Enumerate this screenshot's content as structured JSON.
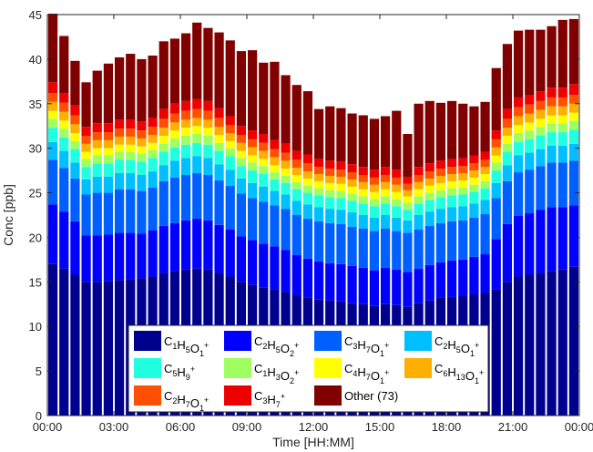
{
  "chart_data": {
    "type": "bar",
    "stacked": true,
    "xlabel": "Time [HH:MM]",
    "ylabel": "Conc  [ppb]",
    "ylim": [
      0,
      45
    ],
    "yticks": [
      0,
      5,
      10,
      15,
      20,
      25,
      30,
      35,
      40,
      45
    ],
    "xtick_labels": [
      "00:00",
      "03:00",
      "06:00",
      "09:00",
      "12:00",
      "15:00",
      "18:00",
      "21:00",
      "00:00"
    ],
    "x_range_hours": [
      0,
      24
    ],
    "grid": false,
    "legend_position": "bottom-center",
    "x_hours": [
      0.25,
      0.75,
      1.25,
      1.75,
      2.25,
      2.75,
      3.25,
      3.75,
      4.25,
      4.75,
      5.25,
      5.75,
      6.25,
      6.75,
      7.25,
      7.75,
      8.25,
      8.75,
      9.25,
      9.75,
      10.25,
      10.75,
      11.25,
      11.75,
      12.25,
      12.75,
      13.25,
      13.75,
      14.25,
      14.75,
      15.25,
      15.75,
      16.25,
      16.75,
      17.25,
      17.75,
      18.25,
      18.75,
      19.25,
      19.75,
      20.25,
      20.75,
      21.25,
      21.75,
      22.25,
      22.75,
      23.25,
      23.75
    ],
    "series": [
      {
        "label": {
          "parts": [
            [
              "C",
              ""
            ],
            [
              "1",
              "sub"
            ],
            [
              "H",
              ""
            ],
            [
              "5",
              "sub"
            ],
            [
              "O",
              ""
            ],
            [
              "1",
              "sub"
            ],
            [
              "+",
              "sup"
            ]
          ]
        },
        "color": "#00008F",
        "values": [
          17.0,
          16.5,
          15.8,
          15.0,
          15.0,
          15.1,
          15.2,
          15.3,
          15.4,
          15.6,
          16.0,
          16.2,
          16.4,
          16.5,
          16.4,
          16.0,
          15.6,
          15.0,
          14.7,
          14.4,
          14.2,
          13.9,
          13.5,
          13.2,
          13.0,
          12.9,
          12.8,
          12.6,
          12.5,
          12.3,
          12.5,
          12.4,
          12.2,
          12.6,
          12.9,
          13.2,
          13.3,
          13.4,
          13.6,
          13.8,
          14.2,
          15.0,
          15.6,
          15.8,
          16.0,
          16.2,
          16.4,
          16.7
        ]
      },
      {
        "label": {
          "parts": [
            [
              "C",
              ""
            ],
            [
              "2",
              "sub"
            ],
            [
              "H",
              ""
            ],
            [
              "5",
              "sub"
            ],
            [
              "O",
              ""
            ],
            [
              "2",
              "sub"
            ],
            [
              "+",
              "sup"
            ]
          ]
        },
        "color": "#0000FF",
        "values": [
          6.7,
          6.4,
          6.0,
          5.2,
          5.2,
          5.2,
          5.3,
          5.2,
          5.0,
          5.2,
          5.3,
          5.4,
          5.5,
          5.6,
          5.5,
          5.4,
          5.3,
          5.1,
          5.0,
          4.9,
          4.8,
          4.7,
          4.5,
          4.4,
          4.3,
          4.2,
          4.2,
          4.2,
          4.1,
          4.0,
          4.1,
          4.0,
          3.9,
          3.9,
          4.0,
          4.0,
          4.1,
          4.1,
          4.2,
          4.3,
          5.6,
          6.5,
          6.8,
          6.9,
          7.1,
          7.2,
          7.0,
          6.9
        ]
      },
      {
        "label": {
          "parts": [
            [
              "C",
              ""
            ],
            [
              "3",
              "sub"
            ],
            [
              "H",
              ""
            ],
            [
              "7",
              "sub"
            ],
            [
              "O",
              ""
            ],
            [
              "1",
              "sub"
            ],
            [
              "+",
              "sup"
            ]
          ]
        },
        "color": "#0060FF",
        "values": [
          5.0,
          4.9,
          4.8,
          4.6,
          4.8,
          4.7,
          4.9,
          4.9,
          4.8,
          4.8,
          5.0,
          5.1,
          5.1,
          5.1,
          5.1,
          5.0,
          4.9,
          4.8,
          4.7,
          4.7,
          4.6,
          4.6,
          4.5,
          4.5,
          4.5,
          4.5,
          4.5,
          4.4,
          4.4,
          4.4,
          4.4,
          4.3,
          4.4,
          4.4,
          4.4,
          4.4,
          4.4,
          4.4,
          4.4,
          4.5,
          4.6,
          4.8,
          4.9,
          4.9,
          4.9,
          5.0,
          5.0,
          5.0
        ]
      },
      {
        "label": {
          "parts": [
            [
              "C",
              ""
            ],
            [
              "2",
              "sub"
            ],
            [
              "H",
              ""
            ],
            [
              "5",
              "sub"
            ],
            [
              "O",
              ""
            ],
            [
              "1",
              "sub"
            ],
            [
              "+",
              "sup"
            ]
          ]
        },
        "color": "#00BFFF",
        "values": [
          2.0,
          1.9,
          1.8,
          1.7,
          1.8,
          1.8,
          1.8,
          1.8,
          1.8,
          1.8,
          1.8,
          1.9,
          1.9,
          1.9,
          1.9,
          1.8,
          1.8,
          1.7,
          1.7,
          1.7,
          1.6,
          1.6,
          1.6,
          1.6,
          1.6,
          1.6,
          1.6,
          1.6,
          1.5,
          1.5,
          1.5,
          1.5,
          1.4,
          1.6,
          1.6,
          1.6,
          1.6,
          1.6,
          1.6,
          1.6,
          1.7,
          1.8,
          1.9,
          1.9,
          1.9,
          1.9,
          1.9,
          1.9
        ]
      },
      {
        "label": {
          "parts": [
            [
              "C",
              ""
            ],
            [
              "5",
              "sub"
            ],
            [
              "H",
              ""
            ],
            [
              "9",
              "sub"
            ],
            [
              "+",
              "sup"
            ]
          ]
        },
        "color": "#20FFDF",
        "values": [
          1.6,
          1.5,
          1.5,
          1.4,
          1.5,
          1.5,
          1.5,
          1.5,
          1.5,
          1.5,
          1.5,
          1.5,
          1.5,
          1.5,
          1.5,
          1.5,
          1.5,
          1.4,
          1.4,
          1.4,
          1.3,
          1.3,
          1.3,
          1.3,
          1.3,
          1.3,
          1.3,
          1.3,
          1.3,
          1.3,
          1.3,
          1.3,
          1.2,
          1.3,
          1.3,
          1.3,
          1.3,
          1.3,
          1.3,
          1.3,
          1.4,
          1.5,
          1.5,
          1.5,
          1.5,
          1.5,
          1.5,
          1.6
        ]
      },
      {
        "label": {
          "parts": [
            [
              "C",
              ""
            ],
            [
              "1",
              "sub"
            ],
            [
              "H",
              ""
            ],
            [
              "3",
              "sub"
            ],
            [
              "O",
              ""
            ],
            [
              "2",
              "sub"
            ],
            [
              "+",
              "sup"
            ]
          ]
        },
        "color": "#9FFF60",
        "values": [
          1.0,
          1.0,
          0.9,
          0.9,
          0.9,
          0.9,
          0.9,
          0.9,
          0.9,
          0.9,
          0.9,
          1.0,
          1.0,
          1.0,
          1.0,
          0.9,
          0.9,
          0.9,
          0.9,
          0.9,
          0.8,
          0.8,
          0.8,
          0.8,
          0.8,
          0.8,
          0.8,
          0.8,
          0.8,
          0.8,
          0.8,
          0.8,
          0.8,
          0.8,
          0.8,
          0.8,
          0.8,
          0.8,
          0.8,
          0.8,
          0.9,
          0.9,
          1.0,
          1.0,
          1.0,
          1.0,
          1.0,
          1.0
        ]
      },
      {
        "label": {
          "parts": [
            [
              "C",
              ""
            ],
            [
              "4",
              "sub"
            ],
            [
              "H",
              ""
            ],
            [
              "7",
              "sub"
            ],
            [
              "O",
              ""
            ],
            [
              "1",
              "sub"
            ],
            [
              "+",
              "sup"
            ]
          ]
        },
        "color": "#FFFF00",
        "values": [
          0.9,
          0.9,
          0.9,
          0.8,
          0.8,
          0.8,
          0.8,
          0.8,
          0.8,
          0.8,
          0.9,
          0.9,
          0.9,
          0.9,
          0.9,
          0.9,
          0.8,
          0.8,
          0.8,
          0.8,
          0.8,
          0.8,
          0.8,
          0.8,
          0.8,
          0.8,
          0.8,
          0.8,
          0.8,
          0.8,
          0.8,
          0.8,
          0.7,
          0.8,
          0.8,
          0.8,
          0.8,
          0.8,
          0.8,
          0.8,
          0.8,
          0.9,
          0.9,
          0.9,
          0.9,
          0.9,
          0.9,
          0.9
        ]
      },
      {
        "label": {
          "parts": [
            [
              "C",
              ""
            ],
            [
              "6",
              "sub"
            ],
            [
              "H",
              ""
            ],
            [
              "13",
              "sub"
            ],
            [
              "O",
              ""
            ],
            [
              "1",
              "sub"
            ],
            [
              "+",
              "sup"
            ]
          ]
        },
        "color": "#FFAF00",
        "values": [
          1.0,
          1.0,
          1.0,
          0.9,
          0.9,
          0.9,
          0.9,
          0.9,
          0.9,
          0.9,
          0.9,
          0.9,
          0.9,
          0.9,
          0.9,
          0.9,
          0.9,
          0.9,
          0.9,
          0.9,
          0.9,
          0.9,
          0.8,
          0.8,
          0.8,
          0.8,
          0.8,
          0.8,
          0.8,
          0.8,
          0.8,
          0.8,
          0.7,
          0.8,
          0.8,
          0.8,
          0.8,
          0.8,
          0.8,
          0.8,
          0.9,
          0.9,
          1.0,
          1.0,
          1.0,
          1.0,
          1.0,
          1.0
        ]
      },
      {
        "label": {
          "parts": [
            [
              "C",
              ""
            ],
            [
              "2",
              "sub"
            ],
            [
              "H",
              ""
            ],
            [
              "7",
              "sub"
            ],
            [
              "O",
              ""
            ],
            [
              "1",
              "sub"
            ],
            [
              "+",
              "sup"
            ]
          ]
        },
        "color": "#FF4F00",
        "values": [
          1.0,
          1.0,
          1.0,
          0.9,
          0.9,
          0.9,
          0.9,
          0.9,
          0.9,
          0.9,
          1.0,
          1.0,
          1.0,
          1.0,
          1.0,
          1.0,
          0.9,
          0.9,
          0.9,
          0.9,
          0.9,
          0.9,
          0.9,
          0.9,
          0.8,
          0.8,
          0.8,
          0.8,
          0.8,
          0.8,
          0.8,
          0.8,
          0.7,
          0.8,
          0.8,
          0.8,
          0.8,
          0.8,
          0.8,
          0.8,
          0.9,
          1.0,
          1.0,
          1.0,
          1.0,
          1.0,
          1.0,
          1.0
        ]
      },
      {
        "label": {
          "parts": [
            [
              "C",
              ""
            ],
            [
              "3",
              "sub"
            ],
            [
              "H",
              ""
            ],
            [
              "7",
              "sub"
            ],
            [
              "+",
              "sup"
            ]
          ]
        },
        "color": "#EF0000",
        "values": [
          1.2,
          1.1,
          1.1,
          1.0,
          1.0,
          1.0,
          1.0,
          1.0,
          1.0,
          1.0,
          1.1,
          1.1,
          1.1,
          1.1,
          1.1,
          1.1,
          1.0,
          1.0,
          1.0,
          1.0,
          1.0,
          1.0,
          1.0,
          1.0,
          0.9,
          0.9,
          0.9,
          0.9,
          0.9,
          0.9,
          0.9,
          0.9,
          0.8,
          0.9,
          0.9,
          0.9,
          0.9,
          0.9,
          0.9,
          0.9,
          1.0,
          1.1,
          1.1,
          1.1,
          1.1,
          1.1,
          1.1,
          1.2
        ]
      },
      {
        "label": {
          "parts": [
            [
              "Other (73)",
              ""
            ]
          ]
        },
        "color": "#800000",
        "values": [
          7.7,
          6.4,
          5.0,
          5.0,
          5.9,
          6.7,
          7.0,
          7.4,
          7.0,
          7.0,
          7.6,
          7.3,
          7.6,
          8.6,
          8.2,
          8.5,
          8.5,
          8.4,
          9.0,
          8.0,
          8.8,
          7.7,
          7.4,
          7.1,
          5.6,
          6.1,
          6.0,
          5.7,
          5.8,
          5.7,
          5.7,
          6.6,
          4.8,
          7.1,
          7.0,
          6.5,
          6.5,
          6.1,
          5.5,
          5.6,
          7.0,
          7.3,
          7.5,
          7.3,
          6.9,
          6.9,
          7.6,
          7.3
        ]
      }
    ]
  }
}
